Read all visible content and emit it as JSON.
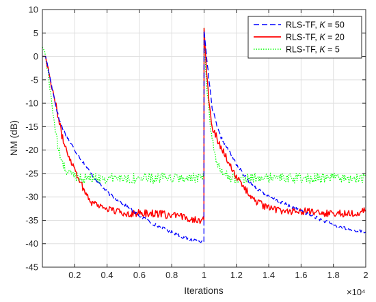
{
  "chart_data": {
    "type": "line",
    "title": "",
    "xlabel": "Iterations",
    "ylabel": "NM (dB)",
    "x_exponent_label": "×10⁴",
    "x_multiplier": 10000,
    "xlim": [
      0,
      20000
    ],
    "ylim": [
      -45,
      10
    ],
    "x_ticks": [
      2000,
      4000,
      6000,
      8000,
      10000,
      12000,
      14000,
      16000,
      18000,
      20000
    ],
    "x_tick_labels": [
      "0.2",
      "0.4",
      "0.6",
      "0.8",
      "1",
      "1.2",
      "1.4",
      "1.6",
      "1.8",
      "2"
    ],
    "y_ticks": [
      10,
      5,
      0,
      -5,
      -10,
      -15,
      -20,
      -25,
      -30,
      -35,
      -40,
      -45
    ],
    "y_tick_labels": [
      "10",
      "5",
      "0",
      "-5",
      "-10",
      "-15",
      "-20",
      "-25",
      "-30",
      "-35",
      "-40",
      "-45"
    ],
    "grid": true,
    "legend_position": "top-right",
    "series": [
      {
        "name_prefix": "RLS-TF, ",
        "name_var": "K",
        "name_value": " = 50",
        "color": "#0000ff",
        "dash": "dashed",
        "noise": 0.35,
        "x": [
          0,
          200,
          500,
          800,
          1000,
          1200,
          1500,
          2000,
          2500,
          3000,
          3500,
          4000,
          5000,
          6000,
          7000,
          8000,
          9000,
          9990,
          10000,
          10100,
          10300,
          10500,
          10800,
          11000,
          11500,
          12000,
          12500,
          13000,
          14000,
          15000,
          16000,
          17000,
          18000,
          19000,
          20000
        ],
        "values": [
          0,
          0,
          -5,
          -10,
          -13,
          -15,
          -17,
          -20,
          -22.5,
          -25,
          -27,
          -29,
          -31.5,
          -34,
          -36,
          -37.5,
          -39,
          -39.5,
          5.5,
          2,
          -5,
          -11,
          -15,
          -17,
          -20,
          -23,
          -25.5,
          -27.5,
          -30,
          -31.5,
          -33,
          -34.5,
          -36,
          -37,
          -37.5
        ]
      },
      {
        "name_prefix": "RLS-TF, ",
        "name_var": "K",
        "name_value": " = 20",
        "color": "#ff0000",
        "dash": "solid",
        "noise": 0.8,
        "x": [
          0,
          200,
          500,
          800,
          1000,
          1200,
          1500,
          1800,
          2000,
          2500,
          3000,
          4000,
          5000,
          6000,
          7000,
          8000,
          9000,
          9990,
          10000,
          10150,
          10300,
          10500,
          10800,
          11000,
          11300,
          11600,
          12000,
          12500,
          13000,
          14000,
          15000,
          16000,
          17000,
          18000,
          19000,
          20000
        ],
        "values": [
          0,
          0,
          -5,
          -10,
          -13,
          -17,
          -20,
          -22.5,
          -24,
          -28,
          -31,
          -32.5,
          -33.5,
          -33.5,
          -33.5,
          -34,
          -34.5,
          -35,
          6,
          -3,
          -10,
          -15,
          -17.5,
          -19,
          -21,
          -23,
          -26,
          -28,
          -30.5,
          -32.5,
          -33,
          -33,
          -33.5,
          -33.5,
          -33.5,
          -33
        ]
      },
      {
        "name_prefix": "RLS-TF, ",
        "name_var": "K",
        "name_value": " = 5",
        "color": "#00ff00",
        "dash": "dotted",
        "noise": 1.1,
        "x": [
          0,
          150,
          400,
          600,
          800,
          1000,
          1200,
          1500,
          2000,
          2500,
          3000,
          4000,
          5000,
          6000,
          7000,
          8000,
          9000,
          9990,
          10000,
          10100,
          10250,
          10400,
          10600,
          10800,
          11000,
          11500,
          12000,
          13000,
          14000,
          15000,
          16000,
          17000,
          18000,
          19000,
          20000
        ],
        "values": [
          2,
          1,
          -5,
          -10,
          -16,
          -20,
          -22.5,
          -24.5,
          -25.5,
          -26,
          -26,
          -26,
          -26,
          -26,
          -26,
          -26,
          -26,
          -26,
          6,
          -3,
          -10,
          -16,
          -20,
          -22.5,
          -24,
          -25.5,
          -26,
          -26,
          -26,
          -26,
          -26,
          -26,
          -26,
          -26,
          -26
        ]
      }
    ]
  }
}
